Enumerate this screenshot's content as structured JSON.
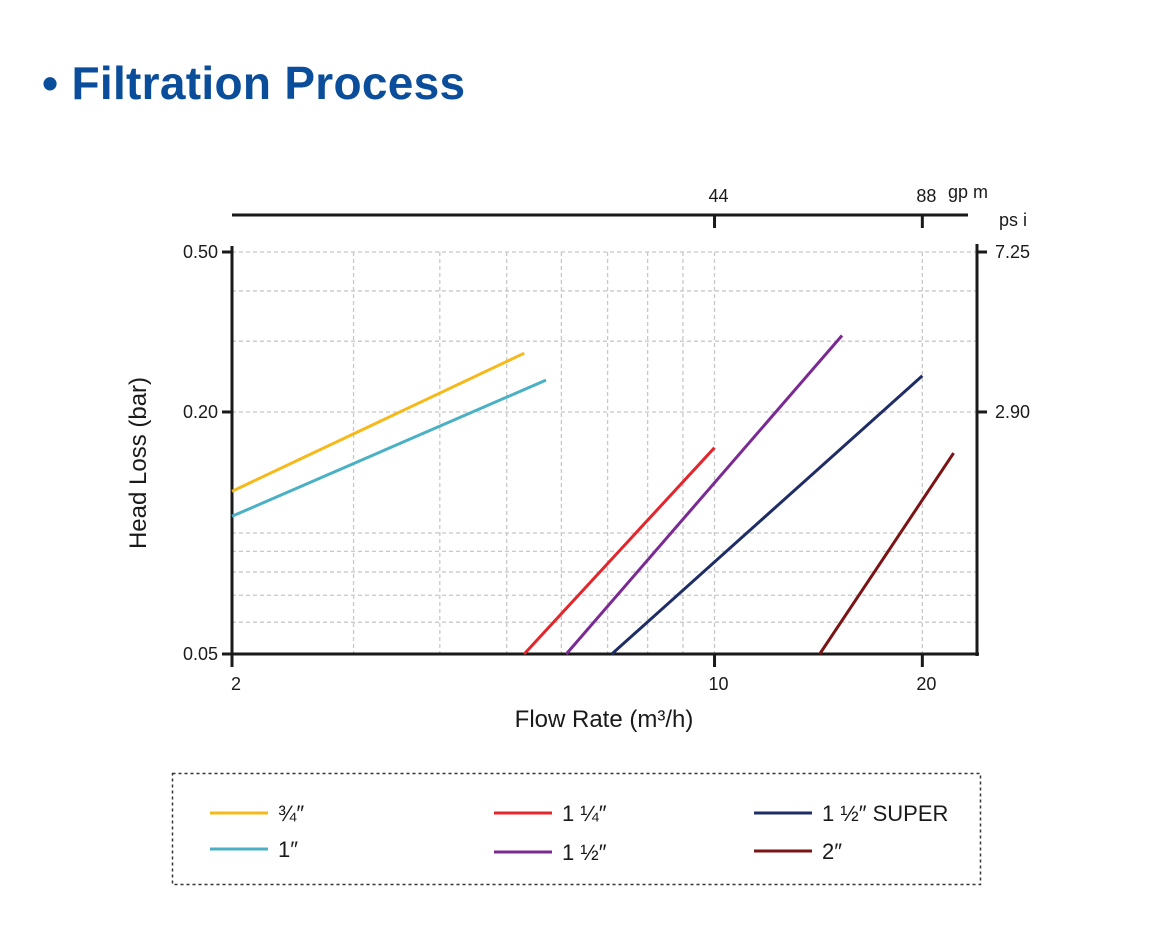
{
  "page": {
    "title": "• Filtration Process"
  },
  "chart_data": {
    "type": "line",
    "x_scale": "log",
    "y_scale": "log",
    "xlim": [
      2,
      24
    ],
    "ylim": [
      0.05,
      0.5
    ],
    "xlabel": "Flow Rate (m³/h)",
    "ylabel": "Head Loss (bar)",
    "x_ticks": [
      {
        "value": 2,
        "label": "2"
      },
      {
        "value": 10,
        "label": "10"
      },
      {
        "value": 20,
        "label": "20"
      }
    ],
    "y_ticks": [
      {
        "value": 0.05,
        "label": "0.05"
      },
      {
        "value": 0.2,
        "label": "0.20"
      },
      {
        "value": 0.5,
        "label": "0.50"
      }
    ],
    "x_grid": [
      3,
      4,
      5,
      6,
      7,
      8,
      9,
      10,
      20
    ],
    "y_grid": [
      0.06,
      0.07,
      0.08,
      0.09,
      0.1,
      0.2,
      0.3,
      0.4,
      0.5
    ],
    "top_axis": {
      "unit": "gp m",
      "ticks": [
        {
          "x": 10,
          "label": "44"
        },
        {
          "x": 20,
          "label": "88"
        }
      ]
    },
    "right_axis": {
      "unit": "ps i",
      "ticks": [
        {
          "y": 0.5,
          "label": "7.25"
        },
        {
          "y": 0.2,
          "label": "2.90"
        }
      ]
    },
    "grid": true,
    "legend_position": "bottom",
    "series": [
      {
        "name": "¾″",
        "color": "#f6b91a",
        "points": [
          [
            2,
            0.127
          ],
          [
            5.3,
            0.28
          ]
        ]
      },
      {
        "name": "1″",
        "color": "#4ab1c4",
        "points": [
          [
            2,
            0.11
          ],
          [
            5.7,
            0.24
          ]
        ]
      },
      {
        "name": "1 ¼″",
        "color": "#e3262c",
        "points": [
          [
            5.3,
            0.05
          ],
          [
            10,
            0.163
          ]
        ]
      },
      {
        "name": "1 ½″",
        "color": "#7a2a92",
        "points": [
          [
            6.1,
            0.05
          ],
          [
            15.3,
            0.31
          ]
        ]
      },
      {
        "name": "1 ½″ SUPER",
        "color": "#1f2d66",
        "points": [
          [
            7.1,
            0.05
          ],
          [
            20,
            0.246
          ]
        ]
      },
      {
        "name": "2″",
        "color": "#7b1414",
        "points": [
          [
            14.2,
            0.05
          ],
          [
            22.2,
            0.158
          ]
        ]
      }
    ]
  }
}
